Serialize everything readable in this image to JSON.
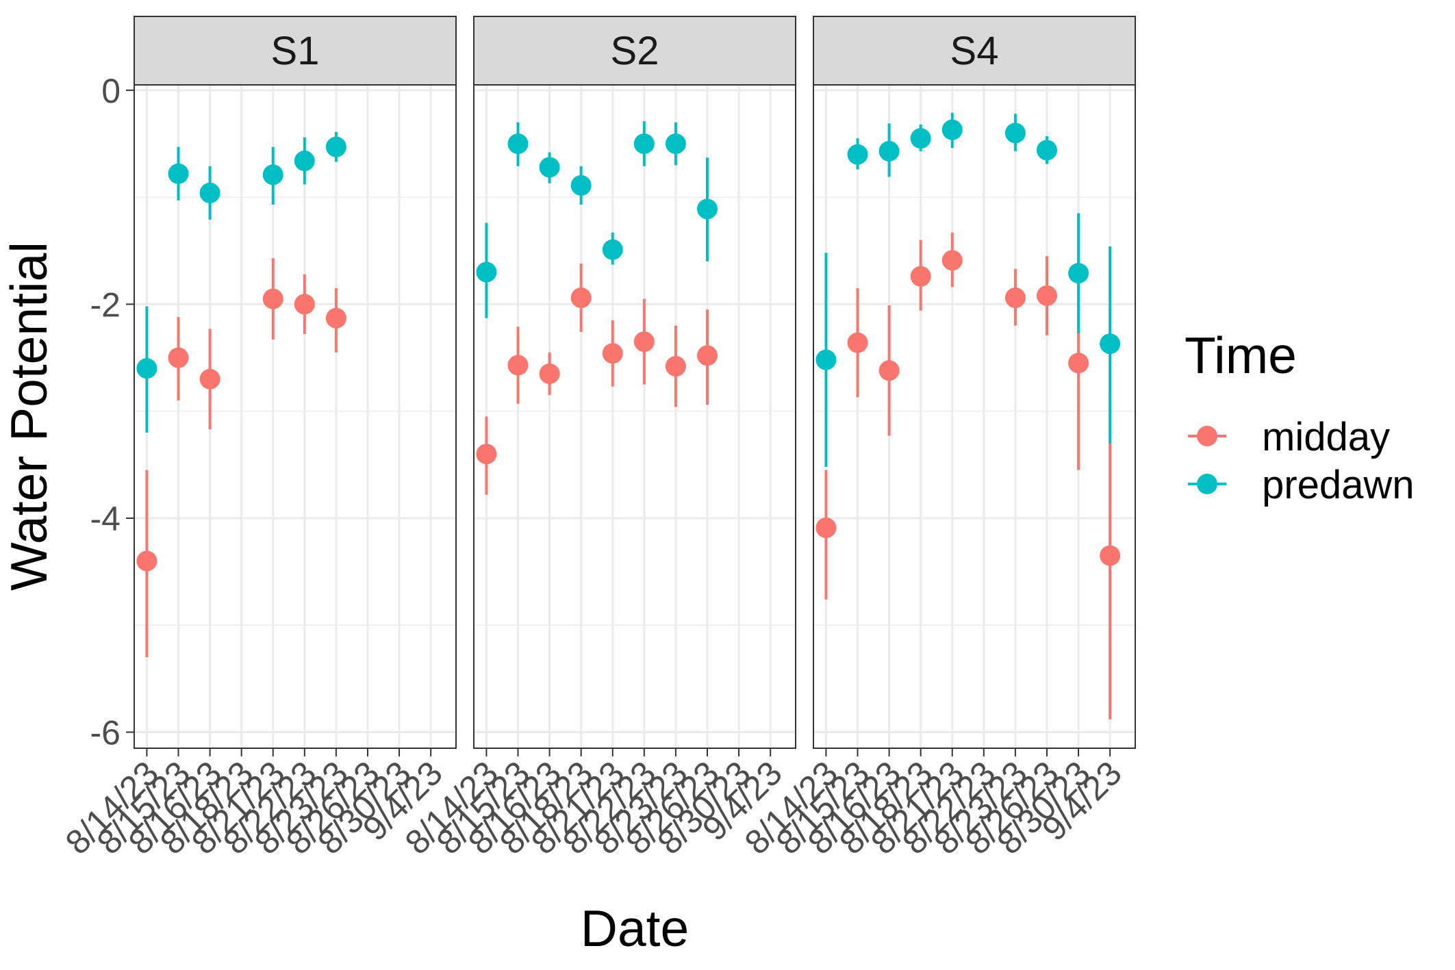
{
  "chart_data": {
    "type": "scatter",
    "xlabel": "Date",
    "ylabel": "Water Potential",
    "ylim": [
      -6.15,
      0.05
    ],
    "y_ticks": [
      0,
      -2,
      -4,
      -6
    ],
    "y_tick_labels": [
      "0",
      "-2",
      "-4",
      "-6"
    ],
    "dates": [
      "8/14/23",
      "8/15/23",
      "8/16/23",
      "8/18/23",
      "8/21/23",
      "8/22/23",
      "8/23/23",
      "8/26/23",
      "8/30/23",
      "9/4/23"
    ],
    "grid": true,
    "legend": {
      "title": "Time",
      "position": "right",
      "entries": [
        {
          "label": "midday",
          "color": "#F8766D"
        },
        {
          "label": "predawn",
          "color": "#00BFC4"
        }
      ]
    },
    "panels": [
      {
        "name": "S1",
        "dates": [
          "8/14/23",
          "8/15/23",
          "8/16/23",
          "8/18/23",
          "8/21/23",
          "8/22/23",
          "8/23/23",
          "8/26/23",
          "8/30/23",
          "9/4/23"
        ],
        "series": [
          {
            "name": "midday",
            "points": [
              {
                "x": "8/14/23",
                "y": -4.4,
                "ymin": -5.3,
                "ymax": -3.55
              },
              {
                "x": "8/15/23",
                "y": -2.5,
                "ymin": -2.9,
                "ymax": -2.12
              },
              {
                "x": "8/16/23",
                "y": -2.7,
                "ymin": -3.17,
                "ymax": -2.23
              },
              {
                "x": "8/21/23",
                "y": -1.95,
                "ymin": -2.33,
                "ymax": -1.57
              },
              {
                "x": "8/22/23",
                "y": -2.0,
                "ymin": -2.28,
                "ymax": -1.72
              },
              {
                "x": "8/23/23",
                "y": -2.13,
                "ymin": -2.45,
                "ymax": -1.85
              }
            ]
          },
          {
            "name": "predawn",
            "points": [
              {
                "x": "8/14/23",
                "y": -2.6,
                "ymin": -3.2,
                "ymax": -2.02
              },
              {
                "x": "8/15/23",
                "y": -0.78,
                "ymin": -1.03,
                "ymax": -0.53
              },
              {
                "x": "8/16/23",
                "y": -0.96,
                "ymin": -1.21,
                "ymax": -0.71
              },
              {
                "x": "8/21/23",
                "y": -0.79,
                "ymin": -1.07,
                "ymax": -0.53
              },
              {
                "x": "8/22/23",
                "y": -0.66,
                "ymin": -0.88,
                "ymax": -0.44
              },
              {
                "x": "8/23/23",
                "y": -0.53,
                "ymin": -0.67,
                "ymax": -0.39
              }
            ]
          }
        ]
      },
      {
        "name": "S2",
        "dates": [
          "8/14/23",
          "8/15/23",
          "8/16/23",
          "8/18/23",
          "8/21/23",
          "8/22/23",
          "8/23/23",
          "8/26/23",
          "8/30/23",
          "9/4/23"
        ],
        "series": [
          {
            "name": "midday",
            "points": [
              {
                "x": "8/14/23",
                "y": -3.4,
                "ymin": -3.78,
                "ymax": -3.05
              },
              {
                "x": "8/15/23",
                "y": -2.57,
                "ymin": -2.93,
                "ymax": -2.21
              },
              {
                "x": "8/16/23",
                "y": -2.65,
                "ymin": -2.85,
                "ymax": -2.45
              },
              {
                "x": "8/18/23",
                "y": -1.94,
                "ymin": -2.26,
                "ymax": -1.62
              },
              {
                "x": "8/21/23",
                "y": -2.46,
                "ymin": -2.77,
                "ymax": -2.15
              },
              {
                "x": "8/22/23",
                "y": -2.35,
                "ymin": -2.75,
                "ymax": -1.95
              },
              {
                "x": "8/23/23",
                "y": -2.58,
                "ymin": -2.96,
                "ymax": -2.2
              },
              {
                "x": "8/26/23",
                "y": -2.48,
                "ymin": -2.94,
                "ymax": -2.05
              }
            ]
          },
          {
            "name": "predawn",
            "points": [
              {
                "x": "8/14/23",
                "y": -1.7,
                "ymin": -2.13,
                "ymax": -1.24
              },
              {
                "x": "8/15/23",
                "y": -0.5,
                "ymin": -0.71,
                "ymax": -0.3
              },
              {
                "x": "8/16/23",
                "y": -0.72,
                "ymin": -0.87,
                "ymax": -0.58
              },
              {
                "x": "8/18/23",
                "y": -0.89,
                "ymin": -1.07,
                "ymax": -0.71
              },
              {
                "x": "8/21/23",
                "y": -1.49,
                "ymin": -1.63,
                "ymax": -1.33
              },
              {
                "x": "8/22/23",
                "y": -0.5,
                "ymin": -0.71,
                "ymax": -0.29
              },
              {
                "x": "8/23/23",
                "y": -0.5,
                "ymin": -0.7,
                "ymax": -0.3
              },
              {
                "x": "8/26/23",
                "y": -1.11,
                "ymin": -1.6,
                "ymax": -0.63
              }
            ]
          }
        ]
      },
      {
        "name": "S4",
        "dates": [
          "8/14/23",
          "8/15/23",
          "8/16/23",
          "8/18/23",
          "8/21/23",
          "8/22/23",
          "8/23/23",
          "8/26/23",
          "8/30/23",
          "9/4/23"
        ],
        "series": [
          {
            "name": "midday",
            "points": [
              {
                "x": "8/14/23",
                "y": -4.09,
                "ymin": -4.76,
                "ymax": -3.55
              },
              {
                "x": "8/15/23",
                "y": -2.36,
                "ymin": -2.87,
                "ymax": -1.85
              },
              {
                "x": "8/16/23",
                "y": -2.62,
                "ymin": -3.23,
                "ymax": -2.01
              },
              {
                "x": "8/18/23",
                "y": -1.74,
                "ymin": -2.06,
                "ymax": -1.4
              },
              {
                "x": "8/21/23",
                "y": -1.59,
                "ymin": -1.84,
                "ymax": -1.33
              },
              {
                "x": "8/23/23",
                "y": -1.94,
                "ymin": -2.2,
                "ymax": -1.67
              },
              {
                "x": "8/26/23",
                "y": -1.92,
                "ymin": -2.29,
                "ymax": -1.55
              },
              {
                "x": "8/30/23",
                "y": -2.55,
                "ymin": -3.55,
                "ymax": -1.6
              },
              {
                "x": "9/4/23",
                "y": -4.35,
                "ymin": -5.88,
                "ymax": -2.85
              }
            ]
          },
          {
            "name": "predawn",
            "points": [
              {
                "x": "8/14/23",
                "y": -2.52,
                "ymin": -3.52,
                "ymax": -1.52
              },
              {
                "x": "8/15/23",
                "y": -0.6,
                "ymin": -0.74,
                "ymax": -0.45
              },
              {
                "x": "8/16/23",
                "y": -0.57,
                "ymin": -0.81,
                "ymax": -0.31
              },
              {
                "x": "8/18/23",
                "y": -0.45,
                "ymin": -0.57,
                "ymax": -0.32
              },
              {
                "x": "8/21/23",
                "y": -0.37,
                "ymin": -0.54,
                "ymax": -0.21
              },
              {
                "x": "8/23/23",
                "y": -0.4,
                "ymin": -0.57,
                "ymax": -0.22
              },
              {
                "x": "8/26/23",
                "y": -0.56,
                "ymin": -0.69,
                "ymax": -0.43
              },
              {
                "x": "8/30/23",
                "y": -1.71,
                "ymin": -2.27,
                "ymax": -1.15
              },
              {
                "x": "9/4/23",
                "y": -2.37,
                "ymin": -3.3,
                "ymax": -1.46
              }
            ]
          }
        ]
      }
    ]
  }
}
